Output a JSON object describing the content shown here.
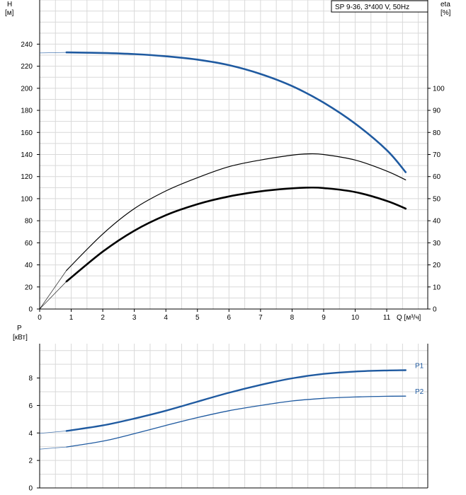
{
  "chart_data": [
    {
      "type": "line",
      "legend_box": "SP 9-36, 3*400 V, 50Hz",
      "x_axis": {
        "label": "Q [м³/ч]",
        "range": [
          0,
          12.3
        ],
        "ticks": [
          0,
          1,
          2,
          3,
          4,
          5,
          6,
          7,
          8,
          9,
          10,
          11
        ]
      },
      "y_left": {
        "label_top": "H",
        "label_unit": "[м]",
        "range": [
          0,
          280
        ],
        "ticks": [
          0,
          20,
          40,
          60,
          80,
          100,
          120,
          140,
          160,
          180,
          200,
          220,
          240
        ]
      },
      "y_right": {
        "label_top": "eta",
        "label_unit": "[%]",
        "range": [
          0,
          140
        ],
        "ticks": [
          0,
          10,
          20,
          30,
          40,
          50,
          60,
          70,
          80,
          90,
          100
        ]
      },
      "grid": true,
      "series": [
        {
          "name": "H",
          "axis": "left",
          "color": "#1f5aa0",
          "extrapolated": [
            [
              0,
              232
            ],
            [
              0.85,
              232.5
            ]
          ],
          "values": [
            [
              0.85,
              232.5
            ],
            [
              2,
              232
            ],
            [
              3,
              231
            ],
            [
              4,
              229
            ],
            [
              5,
              226
            ],
            [
              6,
              221
            ],
            [
              7,
              213
            ],
            [
              8,
              202
            ],
            [
              9,
              187
            ],
            [
              10,
              168
            ],
            [
              11,
              144
            ],
            [
              11.6,
              124
            ]
          ]
        },
        {
          "name": "eta",
          "axis": "right",
          "color": "#000000",
          "extrapolated": [
            [
              0,
              0
            ],
            [
              0.85,
              17.5
            ]
          ],
          "values": [
            [
              0.85,
              17.5
            ],
            [
              2,
              34
            ],
            [
              3,
              45.5
            ],
            [
              4,
              53.5
            ],
            [
              5,
              59.5
            ],
            [
              6,
              64.5
            ],
            [
              7,
              67.5
            ],
            [
              8,
              69.7
            ],
            [
              8.5,
              70.3
            ],
            [
              9,
              70
            ],
            [
              10,
              67.5
            ],
            [
              11,
              62.5
            ],
            [
              11.6,
              58.5
            ]
          ]
        },
        {
          "name": "eta (bold)",
          "axis": "right",
          "color": "#000000",
          "extrapolated": [
            [
              0,
              0
            ],
            [
              0.85,
              12.5
            ]
          ],
          "values": [
            [
              0.85,
              12.5
            ],
            [
              2,
              26
            ],
            [
              3,
              35.5
            ],
            [
              4,
              42.5
            ],
            [
              5,
              47.5
            ],
            [
              6,
              51
            ],
            [
              7,
              53.3
            ],
            [
              8,
              54.7
            ],
            [
              8.5,
              55
            ],
            [
              9,
              54.8
            ],
            [
              10,
              53
            ],
            [
              11,
              49
            ],
            [
              11.6,
              45.5
            ]
          ]
        }
      ]
    },
    {
      "type": "line",
      "x_axis": {
        "range": [
          0,
          12.3
        ],
        "ticks": [
          0,
          1,
          2,
          3,
          4,
          5,
          6,
          7,
          8,
          9,
          10,
          11
        ]
      },
      "y_left": {
        "label_top": "P",
        "label_unit": "[кВт]",
        "range": [
          0,
          10.5
        ],
        "ticks": [
          0,
          2,
          4,
          6,
          8
        ]
      },
      "grid": true,
      "series": [
        {
          "name": "P1",
          "axis": "left",
          "color": "#1f5aa0",
          "extrapolated": [
            [
              0,
              3.97
            ],
            [
              0.85,
              4.15
            ]
          ],
          "values": [
            [
              0.85,
              4.15
            ],
            [
              2,
              4.55
            ],
            [
              3,
              5.05
            ],
            [
              4,
              5.62
            ],
            [
              5,
              6.28
            ],
            [
              6,
              6.93
            ],
            [
              7,
              7.5
            ],
            [
              8,
              7.98
            ],
            [
              9,
              8.3
            ],
            [
              10,
              8.47
            ],
            [
              11,
              8.55
            ],
            [
              11.6,
              8.57
            ]
          ]
        },
        {
          "name": "P2",
          "axis": "left",
          "color": "#1f5aa0",
          "extrapolated": [
            [
              0,
              2.82
            ],
            [
              0.85,
              2.98
            ]
          ],
          "values": [
            [
              0.85,
              2.98
            ],
            [
              2,
              3.4
            ],
            [
              3,
              3.95
            ],
            [
              4,
              4.55
            ],
            [
              5,
              5.12
            ],
            [
              6,
              5.62
            ],
            [
              7,
              6.0
            ],
            [
              8,
              6.33
            ],
            [
              9,
              6.52
            ],
            [
              10,
              6.62
            ],
            [
              11,
              6.67
            ],
            [
              11.6,
              6.68
            ]
          ]
        }
      ]
    }
  ]
}
